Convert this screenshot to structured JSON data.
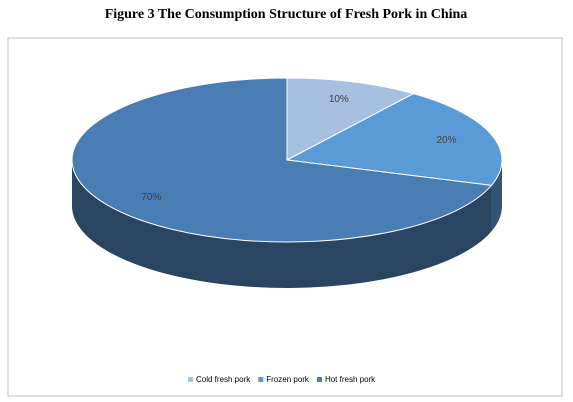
{
  "chart_data": {
    "type": "pie3d",
    "title": "Figure 3 The Consumption Structure of Fresh Pork in China",
    "categories": [
      "Cold fresh pork",
      "Frozen pork",
      "Hot fresh pork"
    ],
    "values": [
      10,
      20,
      70
    ],
    "value_labels": [
      "10%",
      "20%",
      "70%"
    ],
    "colors": [
      "#a7bfe0",
      "#5a9ad6",
      "#4a7db3"
    ],
    "legend": "bottom"
  }
}
